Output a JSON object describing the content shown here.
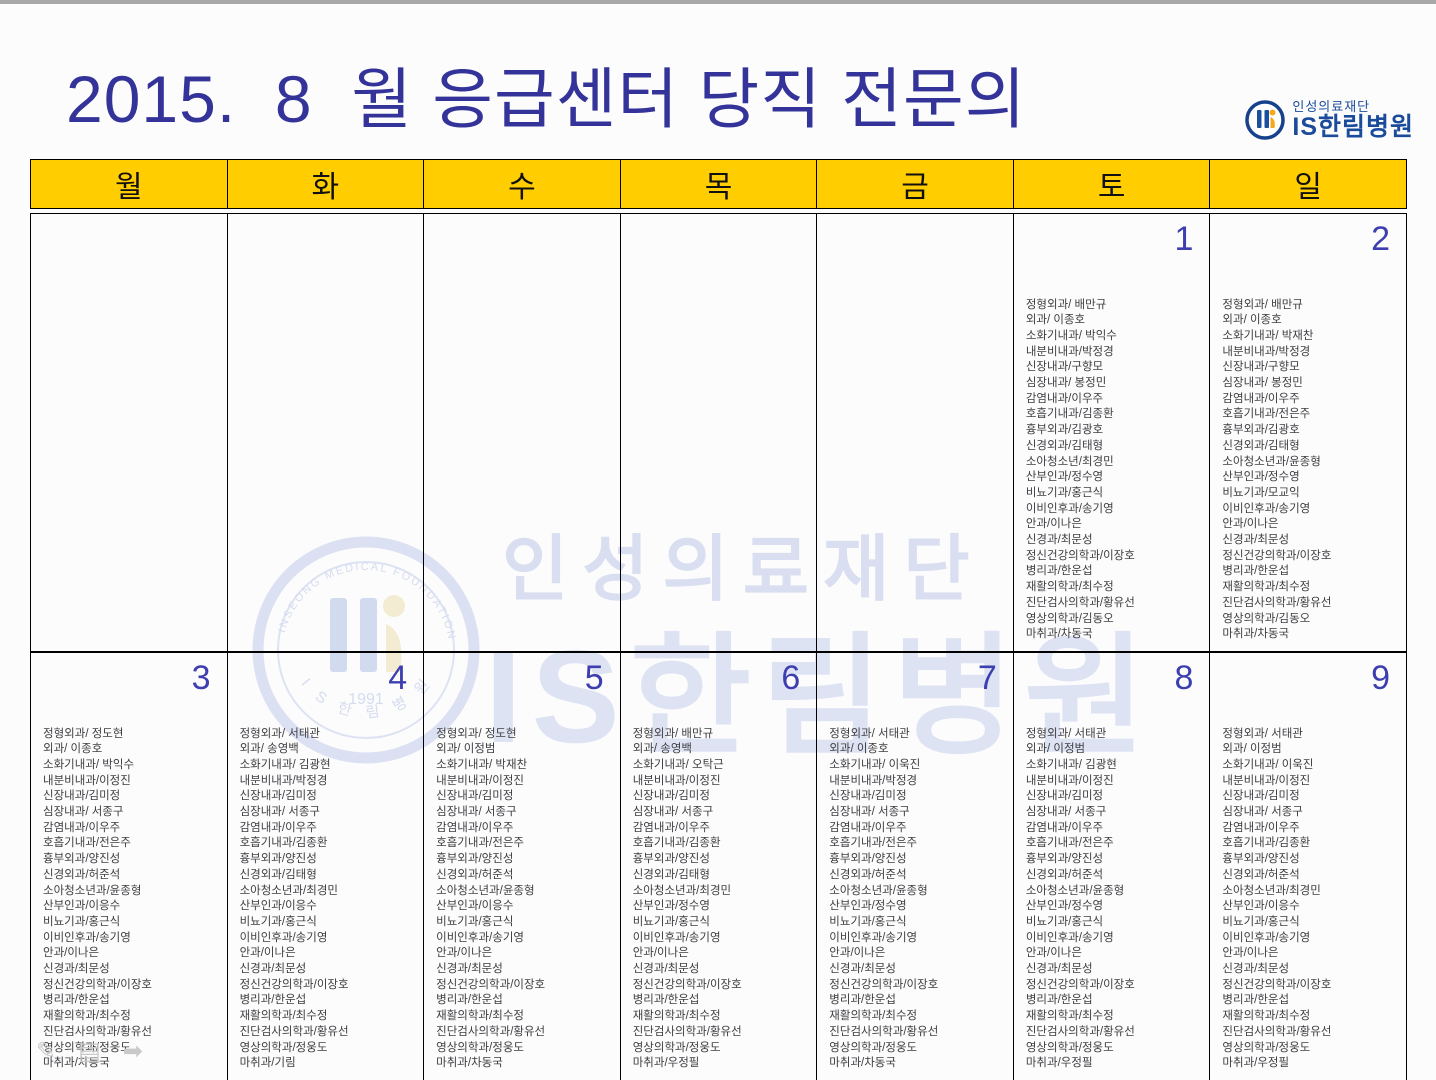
{
  "title": "2015.  8  월 응급센터 당직 전문의",
  "logo": {
    "foundation": "인성의료재단",
    "hospital": "IS한림병원",
    "color": "#1b4c9b"
  },
  "colors": {
    "header_bg": "#ffcd00",
    "title_text": "#333399",
    "day_number": "#3d3eb0",
    "watermark": "#dbe1f2",
    "list_text": "#3e3e42"
  },
  "weekdays": [
    "월",
    "화",
    "수",
    "목",
    "금",
    "토",
    "일"
  ],
  "watermark": {
    "line1": "인성의료재단",
    "line2": "IS한림병원",
    "seal_arc_top": "INSEONG MEDICAL FOUNDATION",
    "seal_arc_bottom": "I S 한 림 병 원",
    "seal_year": "1991"
  },
  "presenter": {
    "pencil_icon": "✎",
    "menu_icon": "▤",
    "next_icon": "➡"
  },
  "weeks": [
    {
      "days": [
        {
          "num": "",
          "list": []
        },
        {
          "num": "",
          "list": []
        },
        {
          "num": "",
          "list": []
        },
        {
          "num": "",
          "list": []
        },
        {
          "num": "",
          "list": []
        },
        {
          "num": "1",
          "list": [
            "정형외과/ 배만규",
            "외과/ 이종호",
            "소화기내과/ 박익수",
            "내분비내과/박정경",
            "신장내과/구향모",
            "심장내과/ 봉정민",
            "감염내과/이우주",
            "호흡기내과/김종환",
            "흉부외과/김광호",
            "신경외과/김태형",
            "소아청소년/최경민",
            "산부인과/정수영",
            "비뇨기과/홍근식",
            "이비인후과/송기영",
            "안과/이나은",
            "신경과/최문성",
            "정신건강의학과/이장호",
            "병리과/한운섭",
            "재활의학과/최수정",
            "진단검사의학과/황유선",
            "영상의학과/김동오",
            "마취과/차동국"
          ]
        },
        {
          "num": "2",
          "list": [
            "정형외과/ 배만규",
            "외과/ 이종호",
            "소화기내과/ 박재찬",
            "내분비내과/박정경",
            "신장내과/구향모",
            "심장내과/ 봉정민",
            "감염내과/이우주",
            "호흡기내과/전은주",
            "흉부외과/김광호",
            "신경외과/김태형",
            "소아청소년과/윤종형",
            "산부인과/정수영",
            "비뇨기과/모교익",
            "이비인후과/송기영",
            "안과/이나은",
            "신경과/최문성",
            "정신건강의학과/이장호",
            "병리과/한운섭",
            "재활의학과/최수정",
            "진단검사의학과/황유선",
            "영상의학과/김동오",
            "마취과/차동국"
          ]
        }
      ]
    },
    {
      "days": [
        {
          "num": "3",
          "list": [
            "정형외과/ 정도현",
            "외과/ 이종호",
            "소화기내과/ 박익수",
            "내분비내과/이정진",
            "신장내과/김미정",
            "심장내과/ 서종구",
            "감염내과/이우주",
            "호흡기내과/전은주",
            "흉부외과/양진성",
            "신경외과/허준석",
            "소아청소년과/윤종형",
            "산부인과/이응수",
            "비뇨기과/홍근식",
            "이비인후과/송기영",
            "안과/이나은",
            "신경과/최문성",
            "정신건강의학과/이장호",
            "병리과/한운섭",
            "재활의학과/최수정",
            "진단검사의학과/황유선",
            "영상의학과/정웅도",
            "마취과/차동국"
          ]
        },
        {
          "num": "4",
          "list": [
            "정형외과/ 서태관",
            "외과/ 송영백",
            "소화기내과/ 김광현",
            "내분비내과/박정경",
            "신장내과/김미정",
            "심장내과/ 서종구",
            "감염내과/이우주",
            "호흡기내과/김종환",
            "흉부외과/양진성",
            "신경외과/김태형",
            "소아청소년과/최경민",
            "산부인과/이응수",
            "비뇨기과/홍근식",
            "이비인후과/송기영",
            "안과/이나은",
            "신경과/최문성",
            "정신건강의학과/이장호",
            "병리과/한운섭",
            "재활의학과/최수정",
            "진단검사의학과/황유선",
            "영상의학과/정웅도",
            "마취과/기림"
          ]
        },
        {
          "num": "5",
          "list": [
            "정형외과/ 정도현",
            "외과/ 이정범",
            "소화기내과/ 박재찬",
            "내분비내과/이정진",
            "신장내과/김미정",
            "심장내과/ 서종구",
            "감염내과/이우주",
            "호흡기내과/전은주",
            "흉부외과/양진성",
            "신경외과/허준석",
            "소아청소년과/윤종형",
            "산부인과/이응수",
            "비뇨기과/홍근식",
            "이비인후과/송기영",
            "안과/이나은",
            "신경과/최문성",
            "정신건강의학과/이장호",
            "병리과/한운섭",
            "재활의학과/최수정",
            "진단검사의학과/황유선",
            "영상의학과/정웅도",
            "마취과/차동국"
          ]
        },
        {
          "num": "6",
          "list": [
            "정형외과/ 배만규",
            "외과/ 송영백",
            "소화기내과/ 오탁근",
            "내분비내과/이정진",
            "신장내과/김미정",
            "심장내과/ 서종구",
            "감염내과/이우주",
            "호흡기내과/김종환",
            "흉부외과/양진성",
            "신경외과/김태형",
            "소아청소년과/최경민",
            "산부인과/정수영",
            "비뇨기과/홍근식",
            "이비인후과/송기영",
            "안과/이나은",
            "신경과/최문성",
            "정신건강의학과/이장호",
            "병리과/한운섭",
            "재활의학과/최수정",
            "진단검사의학과/황유선",
            "영상의학과/정웅도",
            "마취과/우정필"
          ]
        },
        {
          "num": "7",
          "list": [
            "정형외과/ 서태관",
            "외과/ 이종호",
            "소화기내과/ 이욱진",
            "내분비내과/박정경",
            "신장내과/김미정",
            "심장내과/ 서종구",
            "감염내과/이우주",
            "호흡기내과/전은주",
            "흉부외과/양진성",
            "신경외과/허준석",
            "소아청소년과/윤종형",
            "산부인과/정수영",
            "비뇨기과/홍근식",
            "이비인후과/송기영",
            "안과/이나은",
            "신경과/최문성",
            "정신건강의학과/이장호",
            "병리과/한운섭",
            "재활의학과/최수정",
            "진단검사의학과/황유선",
            "영상의학과/정웅도",
            "마취과/차동국"
          ]
        },
        {
          "num": "8",
          "list": [
            "정형외과/ 서태관",
            "외과/ 이정범",
            "소화기내과/ 김광현",
            "내분비내과/이정진",
            "신장내과/김미정",
            "심장내과/ 서종구",
            "감염내과/이우주",
            "호흡기내과/전은주",
            "흉부외과/양진성",
            "신경외과/허준석",
            "소아청소년과/윤종형",
            "산부인과/정수영",
            "비뇨기과/홍근식",
            "이비인후과/송기영",
            "안과/이나은",
            "신경과/최문성",
            "정신건강의학과/이장호",
            "병리과/한운섭",
            "재활의학과/최수정",
            "진단검사의학과/황유선",
            "영상의학과/정웅도",
            "마취과/우정필"
          ]
        },
        {
          "num": "9",
          "list": [
            "정형외과/ 서태관",
            "외과/ 이정범",
            "소화기내과/ 이욱진",
            "내분비내과/이정진",
            "신장내과/김미정",
            "심장내과/ 서종구",
            "감염내과/이우주",
            "호흡기내과/김종환",
            "흉부외과/양진성",
            "신경외과/허준석",
            "소아청소년과/최경민",
            "산부인과/이응수",
            "비뇨기과/홍근식",
            "이비인후과/송기영",
            "안과/이나은",
            "신경과/최문성",
            "정신건강의학과/이장호",
            "병리과/한운섭",
            "재활의학과/최수정",
            "진단검사의학과/황유선",
            "영상의학과/정웅도",
            "마취과/우정필"
          ]
        }
      ]
    }
  ]
}
